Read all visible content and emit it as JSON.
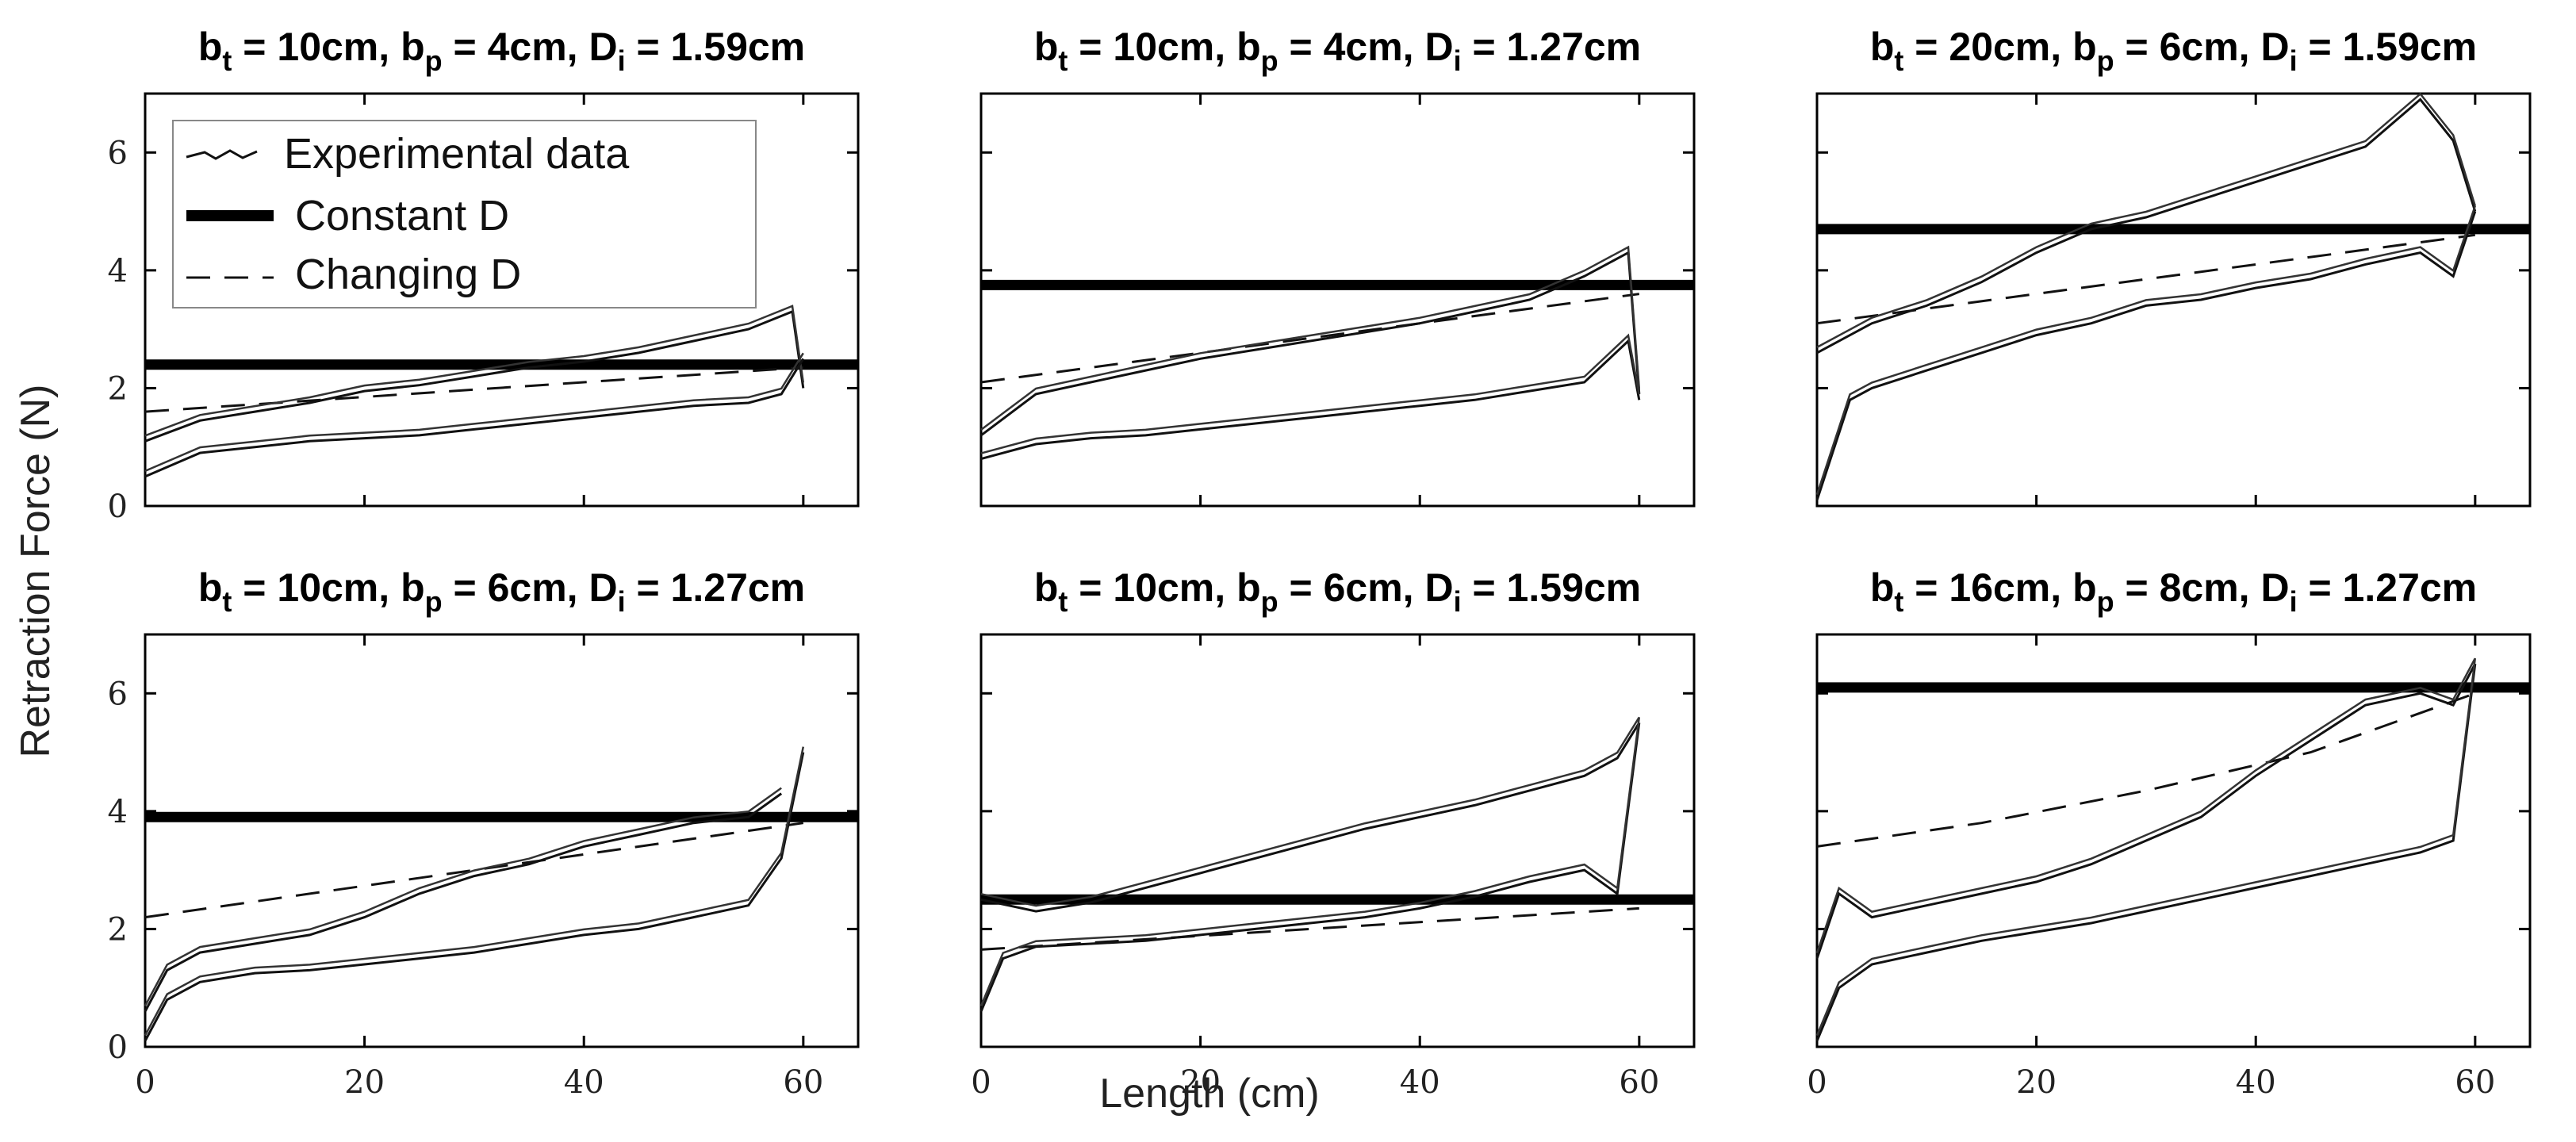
{
  "figure": {
    "ylabel": "Retraction Force (N)",
    "xlabel": "Length (cm)"
  },
  "legend": {
    "experimental": "Experimental data",
    "constant": "Constant D",
    "changing": "Changing D"
  },
  "chart_data": [
    {
      "type": "line",
      "title_parts": {
        "bt": "10cm",
        "bp": "4cm",
        "di": "1.59cm"
      },
      "xlim": [
        0,
        65
      ],
      "ylim": [
        0,
        7
      ],
      "xticks": [
        0,
        20,
        40,
        60
      ],
      "yticks": [
        0,
        2,
        4,
        6
      ],
      "constant_D": 2.4,
      "changing_D": {
        "x": [
          0,
          60
        ],
        "y": [
          1.6,
          2.35
        ]
      },
      "experimental": [
        {
          "name": "Experimental data (upper)",
          "x": [
            0,
            5,
            10,
            15,
            20,
            25,
            30,
            35,
            40,
            45,
            50,
            55,
            59,
            60
          ],
          "y": [
            1.1,
            1.45,
            1.6,
            1.75,
            1.95,
            2.05,
            2.2,
            2.35,
            2.45,
            2.6,
            2.8,
            3.0,
            3.3,
            2.0
          ]
        },
        {
          "name": "Experimental data (lower)",
          "x": [
            0,
            5,
            10,
            15,
            20,
            25,
            30,
            35,
            40,
            45,
            50,
            55,
            58,
            60
          ],
          "y": [
            0.5,
            0.9,
            1.0,
            1.1,
            1.15,
            1.2,
            1.3,
            1.4,
            1.5,
            1.6,
            1.7,
            1.75,
            1.9,
            2.5
          ]
        }
      ]
    },
    {
      "type": "line",
      "title_parts": {
        "bt": "10cm",
        "bp": "4cm",
        "di": "1.27cm"
      },
      "xlim": [
        0,
        65
      ],
      "ylim": [
        0,
        7
      ],
      "xticks": [
        0,
        20,
        40,
        60
      ],
      "yticks": [
        0,
        2,
        4,
        6
      ],
      "constant_D": 3.75,
      "changing_D": {
        "x": [
          0,
          60
        ],
        "y": [
          2.1,
          3.6
        ]
      },
      "experimental": [
        {
          "name": "Experimental data (upper)",
          "x": [
            0,
            5,
            10,
            15,
            20,
            25,
            30,
            35,
            40,
            45,
            50,
            55,
            59,
            60
          ],
          "y": [
            1.2,
            1.9,
            2.1,
            2.3,
            2.5,
            2.65,
            2.8,
            2.95,
            3.1,
            3.3,
            3.5,
            3.9,
            4.3,
            1.9
          ]
        },
        {
          "name": "Experimental data (lower)",
          "x": [
            0,
            5,
            10,
            15,
            20,
            25,
            30,
            35,
            40,
            45,
            50,
            55,
            59,
            60
          ],
          "y": [
            0.8,
            1.05,
            1.15,
            1.2,
            1.3,
            1.4,
            1.5,
            1.6,
            1.7,
            1.8,
            1.95,
            2.1,
            2.8,
            1.8
          ]
        }
      ]
    },
    {
      "type": "line",
      "title_parts": {
        "bt": "20cm",
        "bp": "6cm",
        "di": "1.59cm"
      },
      "xlim": [
        0,
        65
      ],
      "ylim": [
        0,
        7
      ],
      "xticks": [
        0,
        20,
        40,
        60
      ],
      "yticks": [
        0,
        2,
        4,
        6
      ],
      "constant_D": 4.7,
      "changing_D": {
        "x": [
          0,
          60
        ],
        "y": [
          3.1,
          4.6
        ]
      },
      "experimental": [
        {
          "name": "Experimental data (upper)",
          "x": [
            0,
            5,
            10,
            15,
            20,
            25,
            30,
            35,
            40,
            45,
            50,
            55,
            58,
            60
          ],
          "y": [
            2.6,
            3.1,
            3.4,
            3.8,
            4.3,
            4.7,
            4.9,
            5.2,
            5.5,
            5.8,
            6.1,
            6.9,
            6.2,
            5.0
          ]
        },
        {
          "name": "Experimental data (lower)",
          "x": [
            0,
            3,
            5,
            10,
            15,
            20,
            25,
            30,
            35,
            40,
            45,
            50,
            55,
            58,
            60
          ],
          "y": [
            0.1,
            1.8,
            2.0,
            2.3,
            2.6,
            2.9,
            3.1,
            3.4,
            3.5,
            3.7,
            3.85,
            4.1,
            4.3,
            3.9,
            5.0
          ]
        }
      ]
    },
    {
      "type": "line",
      "title_parts": {
        "bt": "10cm",
        "bp": "6cm",
        "di": "1.27cm"
      },
      "xlim": [
        0,
        65
      ],
      "ylim": [
        0,
        7
      ],
      "xticks": [
        0,
        20,
        40,
        60
      ],
      "yticks": [
        0,
        2,
        4,
        6
      ],
      "constant_D": 3.9,
      "changing_D": {
        "x": [
          0,
          60
        ],
        "y": [
          2.2,
          3.8
        ]
      },
      "experimental": [
        {
          "name": "Experimental data (upper)",
          "x": [
            0,
            2,
            5,
            10,
            15,
            20,
            25,
            30,
            35,
            40,
            45,
            50,
            55,
            58
          ],
          "y": [
            0.6,
            1.3,
            1.6,
            1.75,
            1.9,
            2.2,
            2.6,
            2.9,
            3.1,
            3.4,
            3.6,
            3.8,
            3.9,
            4.3
          ]
        },
        {
          "name": "Experimental data (lower)",
          "x": [
            0,
            2,
            5,
            10,
            15,
            20,
            25,
            30,
            35,
            40,
            45,
            50,
            55,
            58,
            60
          ],
          "y": [
            0.1,
            0.8,
            1.1,
            1.25,
            1.3,
            1.4,
            1.5,
            1.6,
            1.75,
            1.9,
            2.0,
            2.2,
            2.4,
            3.2,
            5.0
          ]
        }
      ]
    },
    {
      "type": "line",
      "title_parts": {
        "bt": "10cm",
        "bp": "6cm",
        "di": "1.59cm"
      },
      "xlim": [
        0,
        65
      ],
      "ylim": [
        0,
        7
      ],
      "xticks": [
        0,
        20,
        40,
        60
      ],
      "yticks": [
        0,
        2,
        4,
        6
      ],
      "constant_D": 2.5,
      "changing_D": {
        "x": [
          0,
          60
        ],
        "y": [
          1.65,
          2.35
        ]
      },
      "experimental": [
        {
          "name": "Experimental data (upper)",
          "x": [
            0,
            5,
            10,
            15,
            20,
            25,
            30,
            35,
            40,
            45,
            50,
            55,
            58,
            60
          ],
          "y": [
            2.5,
            2.3,
            2.45,
            2.7,
            2.95,
            3.2,
            3.45,
            3.7,
            3.9,
            4.1,
            4.35,
            4.6,
            4.9,
            5.5
          ]
        },
        {
          "name": "Experimental data (lower)",
          "x": [
            0,
            2,
            5,
            10,
            15,
            20,
            25,
            30,
            35,
            40,
            45,
            50,
            55,
            58,
            60
          ],
          "y": [
            0.6,
            1.5,
            1.7,
            1.75,
            1.8,
            1.9,
            2.0,
            2.1,
            2.2,
            2.35,
            2.55,
            2.8,
            3.0,
            2.6,
            5.5
          ]
        }
      ]
    },
    {
      "type": "line",
      "title_parts": {
        "bt": "16cm",
        "bp": "8cm",
        "di": "1.27cm"
      },
      "xlim": [
        0,
        65
      ],
      "ylim": [
        0,
        7
      ],
      "xticks": [
        0,
        20,
        40,
        60
      ],
      "yticks": [
        0,
        2,
        4,
        6
      ],
      "constant_D": 6.1,
      "changing_D": {
        "x": [
          0,
          15,
          30,
          45,
          60
        ],
        "y": [
          3.4,
          3.8,
          4.35,
          5.0,
          6.0
        ]
      },
      "experimental": [
        {
          "name": "Experimental data (upper)",
          "x": [
            0,
            2,
            5,
            10,
            15,
            20,
            25,
            30,
            35,
            40,
            45,
            50,
            55,
            58,
            60
          ],
          "y": [
            1.5,
            2.6,
            2.2,
            2.4,
            2.6,
            2.8,
            3.1,
            3.5,
            3.9,
            4.6,
            5.2,
            5.8,
            6.0,
            5.8,
            6.5
          ]
        },
        {
          "name": "Experimental data (lower)",
          "x": [
            0,
            2,
            5,
            10,
            15,
            20,
            25,
            30,
            35,
            40,
            45,
            50,
            55,
            58,
            60
          ],
          "y": [
            0.1,
            1.0,
            1.4,
            1.6,
            1.8,
            1.95,
            2.1,
            2.3,
            2.5,
            2.7,
            2.9,
            3.1,
            3.3,
            3.5,
            6.5
          ]
        }
      ]
    }
  ]
}
